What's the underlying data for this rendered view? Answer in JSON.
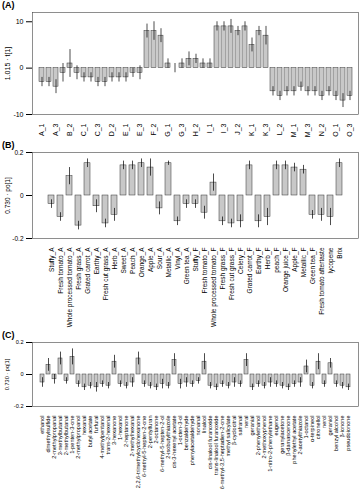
{
  "chart_data": [
    {
      "type": "bar",
      "title": "(A)",
      "y_label": "1.015 · t[1]",
      "color": "#c8c8c8",
      "grid": false,
      "ylim": [
        -10,
        12
      ],
      "yticks": [
        -10,
        0,
        10
      ],
      "categories": [
        "A_1",
        null,
        "A_3",
        null,
        "B_2",
        null,
        "C_1",
        null,
        "C_3",
        null,
        "D_2",
        null,
        "E_1",
        null,
        "E_3",
        null,
        "F_2",
        null,
        "G_1",
        null,
        "G_3",
        null,
        "H_2",
        null,
        "I_1",
        null,
        "I_3",
        null,
        "J_2",
        null,
        "K_1",
        null,
        "K_3",
        null,
        "L_2",
        null,
        "M_1",
        null,
        "M_3",
        null,
        "N_2",
        null,
        "O_1",
        null,
        "O_3"
      ],
      "values": [
        -3,
        -3,
        -4,
        -1,
        1,
        -1,
        -2,
        -2,
        -3,
        -3,
        -2,
        -2,
        -2,
        -1,
        -1,
        8,
        8,
        7,
        1,
        0,
        1,
        2,
        2,
        1,
        1,
        9,
        9,
        9,
        8,
        9,
        5,
        8,
        7,
        -5,
        -6,
        -5,
        -5,
        -4,
        -5,
        -5,
        -6,
        -5,
        -6,
        -7,
        -6
      ],
      "errors": [
        1,
        1,
        1.5,
        2,
        3,
        1.5,
        1,
        1,
        1,
        1,
        1,
        1,
        1,
        1,
        1.5,
        1.5,
        2,
        1.5,
        1,
        1,
        1,
        1.5,
        1,
        1,
        1,
        1,
        1,
        1.5,
        1,
        1,
        1.5,
        1,
        2,
        1,
        1,
        1,
        1,
        1,
        1,
        1,
        1,
        1,
        1,
        1.5,
        1
      ]
    },
    {
      "type": "bar",
      "title": "(B)",
      "y_label": "0.730 · po[1]",
      "color": "#c8c8c8",
      "grid": false,
      "ylim": [
        -0.2,
        0.2
      ],
      "yticks": [
        -0.2,
        0,
        0.2
      ],
      "categories": [
        "Stuffy_A",
        "Fresh tomato_A",
        "Whole processed tomato_A",
        "Fresh grass_A",
        "Grated carrot_A",
        "Earthy_A",
        "Fresh cut grass_A",
        "Herb_A",
        "Sweet_A",
        "Peach_A",
        "Orange_A",
        "Apple_A",
        "Sour_A",
        "Metallic_A",
        "Vinyl_A",
        "Green tea_A",
        "Stuffy_F",
        "Fresh tomato_F",
        "Whole processed tomato_F",
        "Fresh grass_F",
        "Fresh cut grass_F",
        "Celery_F",
        "Grated carrot_F",
        "Earthy_F",
        "Herb_F",
        "peach_F",
        "Orange juice_F",
        "Apple_F",
        "Metallic_F",
        "Green tea_F",
        "Fresh tomato aftertaste",
        "lycopene",
        "Brix"
      ],
      "values": [
        -0.04,
        -0.1,
        0.09,
        -0.14,
        0.15,
        -0.05,
        -0.13,
        -0.09,
        0.14,
        0.14,
        0.15,
        0.13,
        -0.06,
        0.15,
        -0.12,
        -0.04,
        -0.04,
        -0.08,
        0.06,
        -0.12,
        -0.13,
        -0.12,
        0.14,
        -0.12,
        -0.1,
        0.14,
        0.14,
        0.13,
        0.12,
        -0.09,
        -0.09,
        -0.1,
        0.15
      ],
      "errors": [
        0.02,
        0.02,
        0.04,
        0.02,
        0.02,
        0.03,
        0.02,
        0.03,
        0.02,
        0.02,
        0.02,
        0.04,
        0.03,
        0.01,
        0.02,
        0.02,
        0.02,
        0.03,
        0.04,
        0.02,
        0.02,
        0.03,
        0.02,
        0.03,
        0.04,
        0.02,
        0.02,
        0.02,
        0.02,
        0.02,
        0.03,
        0.04,
        0.02
      ]
    },
    {
      "type": "bar",
      "title": "(C)",
      "y_label": "0.730 · pq[1]",
      "color": "#c8c8c8",
      "grid": false,
      "ylim": [
        -0.2,
        0.2
      ],
      "yticks": [
        -0.2,
        0,
        0.2
      ],
      "categories": [
        "ethanol",
        "dimethylsulfide",
        "2-methylpropanal",
        "3-methylbutanal",
        "2-methylbutanal",
        "1-penten-3-one",
        "2-methylpropanol",
        "hexanal",
        "butyl acetate",
        "furfural",
        "4-methylpentanol",
        "trans-2-hexenal",
        "3-hexanone",
        "1-hexanol",
        "2-heptanone",
        "2-methylhexanal",
        "2,2,6-trimethylcyclohexanone",
        "6-methyl-5-hepten-2-one",
        "2-pentylfuran",
        "2-octanone",
        "6-methyl-5-hepten-2-ol",
        "2-isobutylthiazole",
        "cis-3-hexenyl acetate",
        "1-octen-3-ol",
        "benzaldehyde",
        "phenylacetaldehyde",
        "nonanal",
        "linalool",
        "cis-linalool furanoxide",
        "trans-linalool furanoxide",
        "6-methyl-3,5-heptadien-2-one",
        "methyl salicylate",
        "β-cyclocitral",
        "safranal",
        "neral",
        "geranial",
        "2-phenylethanol",
        "2-methoxyphenol",
        "1-nitro-2-phenylethane",
        "eugenol",
        "geranylacetone",
        "β-damascenone",
        "phenylethyl acetate",
        "2-acetylthiazole",
        "1-octanol",
        "α-terpineol",
        "citronellol",
        "nerol",
        "geraniol",
        "benzyl alcohol",
        "β-ionone",
        "pseudoionone"
      ],
      "values": [
        -0.05,
        0.06,
        -0.03,
        0.1,
        -0.04,
        0.11,
        -0.06,
        -0.08,
        -0.07,
        -0.08,
        -0.06,
        -0.07,
        0.08,
        -0.06,
        -0.07,
        -0.05,
        0.1,
        -0.06,
        -0.07,
        -0.08,
        -0.06,
        -0.07,
        0.09,
        -0.06,
        -0.05,
        -0.06,
        -0.04,
        0.08,
        -0.07,
        -0.08,
        -0.06,
        -0.07,
        -0.05,
        -0.06,
        0.09,
        -0.08,
        -0.06,
        -0.07,
        -0.05,
        -0.06,
        -0.07,
        -0.08,
        -0.06,
        -0.05,
        0.05,
        -0.07,
        0.08,
        -0.06,
        0.07,
        -0.06,
        -0.07,
        -0.08
      ],
      "errors": [
        0.03,
        0.04,
        0.03,
        0.04,
        0.02,
        0.05,
        0.02,
        0.02,
        0.02,
        0.03,
        0.02,
        0.02,
        0.04,
        0.02,
        0.02,
        0.03,
        0.04,
        0.02,
        0.02,
        0.02,
        0.03,
        0.02,
        0.04,
        0.03,
        0.03,
        0.02,
        0.02,
        0.05,
        0.02,
        0.02,
        0.02,
        0.02,
        0.03,
        0.02,
        0.04,
        0.02,
        0.02,
        0.02,
        0.03,
        0.02,
        0.02,
        0.02,
        0.02,
        0.03,
        0.04,
        0.02,
        0.05,
        0.02,
        0.03,
        0.02,
        0.02,
        0.02
      ]
    }
  ]
}
